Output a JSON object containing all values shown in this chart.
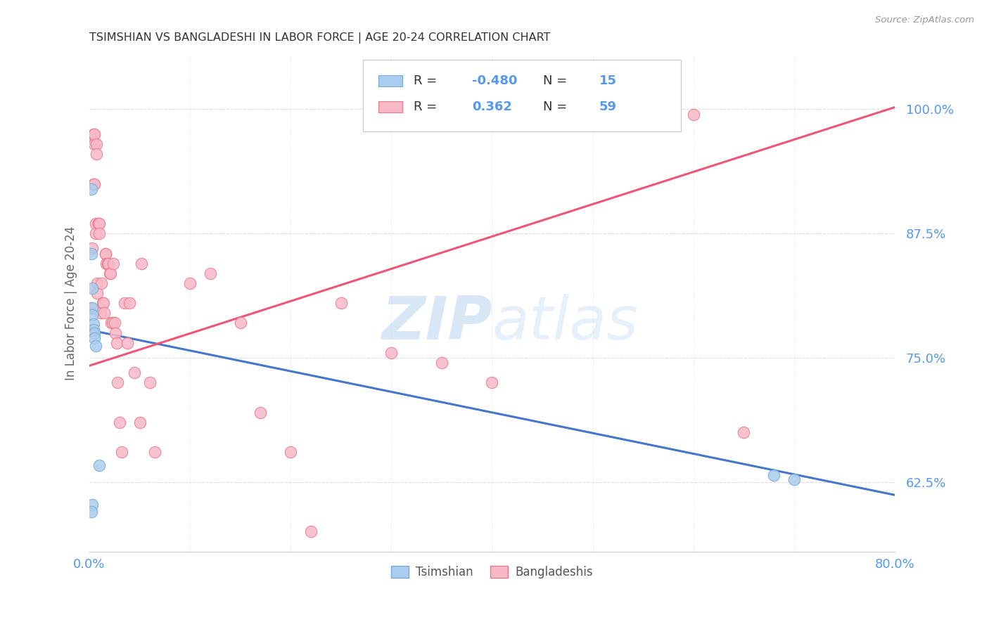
{
  "title": "TSIMSHIAN VS BANGLADESHI IN LABOR FORCE | AGE 20-24 CORRELATION CHART",
  "source": "Source: ZipAtlas.com",
  "ylabel": "In Labor Force | Age 20-24",
  "yticks": [
    0.625,
    0.75,
    0.875,
    1.0
  ],
  "ytick_labels": [
    "62.5%",
    "75.0%",
    "87.5%",
    "100.0%"
  ],
  "xmin": 0.0,
  "xmax": 0.8,
  "ymin": 0.555,
  "ymax": 1.055,
  "tsimshian_marker_facecolor": "#aaccee",
  "tsimshian_marker_edgecolor": "#77aad4",
  "bangladeshi_marker_facecolor": "#f8b8c8",
  "bangladeshi_marker_edgecolor": "#e87888",
  "tsimshian_line_color": "#4477cc",
  "bangladeshi_line_color": "#ee5577",
  "legend_r_tsimshian": "-0.480",
  "legend_n_tsimshian": "15",
  "legend_r_bangladeshi": "0.362",
  "legend_n_bangladeshi": "59",
  "value_color": "#5599ee",
  "watermark_color": "#c8dff8",
  "ts_line_x0": 0.0,
  "ts_line_y0": 0.778,
  "ts_line_x1": 0.8,
  "ts_line_y1": 0.612,
  "bd_line_x0": 0.0,
  "bd_line_y0": 0.742,
  "bd_line_x1": 0.8,
  "bd_line_y1": 1.002,
  "tsimshian_x": [
    0.002,
    0.002,
    0.003,
    0.003,
    0.003,
    0.004,
    0.004,
    0.005,
    0.005,
    0.006,
    0.01,
    0.68,
    0.7,
    0.003,
    0.002
  ],
  "tsimshian_y": [
    0.92,
    0.855,
    0.82,
    0.8,
    0.793,
    0.784,
    0.778,
    0.775,
    0.77,
    0.762,
    0.642,
    0.632,
    0.628,
    0.602,
    0.595
  ],
  "bangladeshi_x": [
    0.002,
    0.003,
    0.003,
    0.004,
    0.004,
    0.005,
    0.005,
    0.005,
    0.006,
    0.006,
    0.007,
    0.007,
    0.008,
    0.008,
    0.009,
    0.009,
    0.01,
    0.01,
    0.011,
    0.012,
    0.013,
    0.014,
    0.015,
    0.016,
    0.016,
    0.017,
    0.018,
    0.019,
    0.02,
    0.021,
    0.022,
    0.023,
    0.024,
    0.025,
    0.026,
    0.027,
    0.028,
    0.03,
    0.032,
    0.035,
    0.038,
    0.04,
    0.045,
    0.05,
    0.052,
    0.06,
    0.065,
    0.1,
    0.12,
    0.15,
    0.17,
    0.2,
    0.22,
    0.25,
    0.3,
    0.35,
    0.4,
    0.6,
    0.65
  ],
  "bangladeshi_y": [
    0.8,
    0.86,
    0.97,
    0.925,
    0.975,
    0.925,
    0.965,
    0.975,
    0.885,
    0.875,
    0.965,
    0.955,
    0.825,
    0.815,
    0.885,
    0.885,
    0.885,
    0.875,
    0.795,
    0.825,
    0.805,
    0.805,
    0.795,
    0.855,
    0.855,
    0.845,
    0.845,
    0.845,
    0.835,
    0.835,
    0.785,
    0.785,
    0.845,
    0.785,
    0.775,
    0.765,
    0.725,
    0.685,
    0.655,
    0.805,
    0.765,
    0.805,
    0.735,
    0.685,
    0.845,
    0.725,
    0.655,
    0.825,
    0.835,
    0.785,
    0.695,
    0.655,
    0.575,
    0.805,
    0.755,
    0.745,
    0.725,
    0.995,
    0.675
  ]
}
